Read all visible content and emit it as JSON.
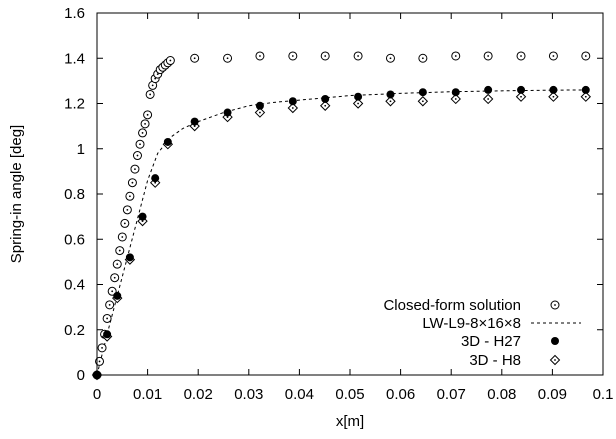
{
  "chart_data": {
    "type": "scatter",
    "xlabel": "x[m]",
    "ylabel": "Spring-in angle [deg]",
    "xlim": [
      0,
      0.1
    ],
    "ylim": [
      0,
      1.6
    ],
    "x_ticks": [
      0,
      0.01,
      0.02,
      0.03,
      0.04,
      0.05,
      0.06,
      0.07,
      0.08,
      0.09,
      0.1
    ],
    "x_tick_labels": [
      "0",
      "0.01",
      "0.02",
      "0.03",
      "0.04",
      "0.05",
      "0.06",
      "0.07",
      "0.08",
      "0.09",
      "0.1"
    ],
    "y_ticks": [
      0,
      0.2,
      0.4,
      0.6,
      0.8,
      1.0,
      1.2,
      1.4,
      1.6
    ],
    "y_tick_labels": [
      "0",
      "0.2",
      "0.4",
      "0.6",
      "0.8",
      "1",
      "1.2",
      "1.4",
      "1.6"
    ],
    "grid": false,
    "legend_position": "bottom-right",
    "series": [
      {
        "name": "Closed-form solution",
        "marker": "open-circle-dot",
        "x": [
          0.0,
          0.0005,
          0.001,
          0.0015,
          0.002,
          0.0025,
          0.003,
          0.0035,
          0.004,
          0.0045,
          0.005,
          0.0055,
          0.006,
          0.0065,
          0.007,
          0.0075,
          0.008,
          0.0085,
          0.009,
          0.0095,
          0.01,
          0.0105,
          0.011,
          0.0115,
          0.012,
          0.0125,
          0.013,
          0.0135,
          0.014,
          0.0145,
          0.0193,
          0.0258,
          0.0322,
          0.0387,
          0.0451,
          0.0516,
          0.058,
          0.0644,
          0.0709,
          0.0773,
          0.0838,
          0.0902,
          0.0966
        ],
        "y": [
          0.0,
          0.06,
          0.12,
          0.18,
          0.25,
          0.31,
          0.37,
          0.43,
          0.49,
          0.55,
          0.61,
          0.67,
          0.73,
          0.79,
          0.85,
          0.91,
          0.97,
          1.02,
          1.07,
          1.11,
          1.15,
          1.24,
          1.28,
          1.31,
          1.33,
          1.35,
          1.36,
          1.37,
          1.38,
          1.39,
          1.4,
          1.4,
          1.41,
          1.41,
          1.41,
          1.41,
          1.4,
          1.4,
          1.41,
          1.41,
          1.41,
          1.41,
          1.41
        ]
      },
      {
        "name": "LW-L9-8×16×8",
        "marker": "dashed-line",
        "x": [
          0.0,
          0.002,
          0.004,
          0.006,
          0.008,
          0.01,
          0.012,
          0.0145,
          0.017,
          0.02,
          0.025,
          0.03,
          0.035,
          0.04,
          0.045,
          0.05,
          0.06,
          0.07,
          0.08,
          0.09,
          0.097
        ],
        "y": [
          0.0,
          0.18,
          0.35,
          0.52,
          0.69,
          0.86,
          0.98,
          1.05,
          1.09,
          1.12,
          1.16,
          1.19,
          1.205,
          1.215,
          1.225,
          1.235,
          1.245,
          1.252,
          1.256,
          1.259,
          1.26
        ]
      },
      {
        "name": "3D - H27",
        "marker": "filled-circle",
        "x": [
          0.0,
          0.002,
          0.004,
          0.0065,
          0.009,
          0.0115,
          0.014,
          0.0193,
          0.0258,
          0.0322,
          0.0387,
          0.0451,
          0.0516,
          0.058,
          0.0644,
          0.0709,
          0.0773,
          0.0838,
          0.0902,
          0.0966
        ],
        "y": [
          0.0,
          0.18,
          0.35,
          0.52,
          0.7,
          0.87,
          1.03,
          1.12,
          1.16,
          1.19,
          1.21,
          1.22,
          1.23,
          1.24,
          1.25,
          1.25,
          1.26,
          1.26,
          1.26,
          1.26
        ]
      },
      {
        "name": "3D - H8",
        "marker": "open-diamond-dot",
        "x": [
          0.0,
          0.002,
          0.004,
          0.0065,
          0.009,
          0.0115,
          0.014,
          0.0193,
          0.0258,
          0.0322,
          0.0387,
          0.0451,
          0.0516,
          0.058,
          0.0644,
          0.0709,
          0.0773,
          0.0838,
          0.0902,
          0.0966
        ],
        "y": [
          0.0,
          0.17,
          0.34,
          0.51,
          0.68,
          0.85,
          1.02,
          1.1,
          1.14,
          1.16,
          1.18,
          1.19,
          1.2,
          1.21,
          1.21,
          1.22,
          1.22,
          1.23,
          1.23,
          1.23
        ]
      }
    ]
  }
}
